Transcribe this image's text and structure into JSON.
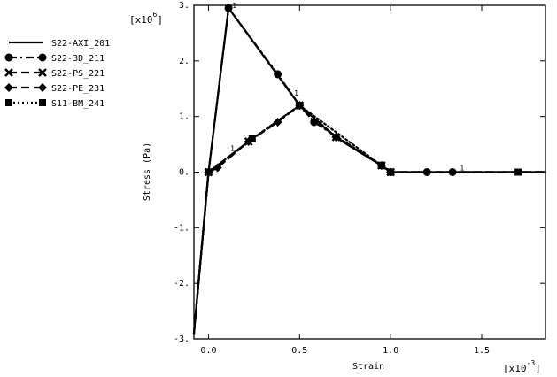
{
  "chart_data": {
    "type": "line",
    "xlabel": "Strain",
    "ylabel": "Stress (Pa)",
    "x_multiplier": {
      "base": "[x10",
      "exp": "-3",
      "close": "]"
    },
    "y_multiplier": {
      "base": "[x10",
      "exp": "6",
      "close": "]"
    },
    "xlim": [
      -0.08,
      1.85
    ],
    "ylim": [
      -3.0,
      3.0
    ],
    "x_ticks": [
      0.0,
      0.5,
      1.0,
      1.5
    ],
    "x_tick_labels": [
      "0.0",
      "0.5",
      "1.0",
      "1.5"
    ],
    "y_ticks": [
      -3,
      -2,
      -1,
      0,
      1,
      2,
      3
    ],
    "y_tick_labels": [
      "-3.",
      "-2.",
      "-1.",
      "0.",
      "1.",
      "2.",
      "3."
    ],
    "grid": false,
    "legend_position": "left",
    "series": [
      {
        "name": "S22-AXI_201",
        "marker": "none",
        "dash": "solid",
        "width": 2.2,
        "x": [
          -0.08,
          0.0,
          0.11,
          0.3,
          0.5,
          0.7,
          0.95,
          1.0,
          1.85
        ],
        "y": [
          -2.9,
          0.0,
          2.95,
          2.1,
          1.2,
          0.62,
          0.12,
          0.0,
          0.0
        ]
      },
      {
        "name": "S22-3D_211",
        "marker": "circle",
        "dash": "dashdot",
        "width": 2.2,
        "x": [
          -0.08,
          0.0,
          0.11,
          0.38,
          0.5,
          0.58,
          0.95,
          1.0,
          1.2,
          1.34,
          1.85
        ],
        "y": [
          -2.9,
          0.0,
          2.95,
          1.76,
          1.2,
          0.9,
          0.12,
          0.0,
          0.0,
          0.0,
          0.0
        ]
      },
      {
        "name": "S22-PS_221",
        "marker": "x",
        "dash": "dashed",
        "width": 2.2,
        "x": [
          -0.08,
          0.0,
          0.22,
          0.5,
          0.7,
          0.95,
          1.0,
          1.85
        ],
        "y": [
          -2.9,
          0.0,
          0.55,
          1.2,
          0.63,
          0.12,
          0.0,
          0.0
        ]
      },
      {
        "name": "S22-PE_231",
        "marker": "diamond",
        "dash": "dashed",
        "width": 2.2,
        "x": [
          -0.08,
          0.0,
          0.05,
          0.22,
          0.38,
          0.5,
          0.7,
          0.95,
          1.0,
          1.85
        ],
        "y": [
          -2.9,
          0.0,
          0.08,
          0.55,
          0.9,
          1.2,
          0.63,
          0.12,
          0.0,
          0.0
        ]
      },
      {
        "name": "S11-BM_241",
        "marker": "square",
        "dash": "dotted",
        "width": 2.2,
        "x": [
          -0.08,
          0.0,
          0.24,
          0.5,
          0.95,
          1.0,
          1.7,
          1.85
        ],
        "y": [
          -2.9,
          0.0,
          0.6,
          1.2,
          0.12,
          0.0,
          0.0,
          0.0
        ]
      }
    ],
    "annotations": [
      {
        "text": "1",
        "x": 0.13,
        "y": 2.95
      },
      {
        "text": "1",
        "x": 0.47,
        "y": 1.38
      },
      {
        "text": "1",
        "x": 0.12,
        "y": 0.38
      },
      {
        "text": "1",
        "x": 1.38,
        "y": 0.03
      }
    ]
  }
}
